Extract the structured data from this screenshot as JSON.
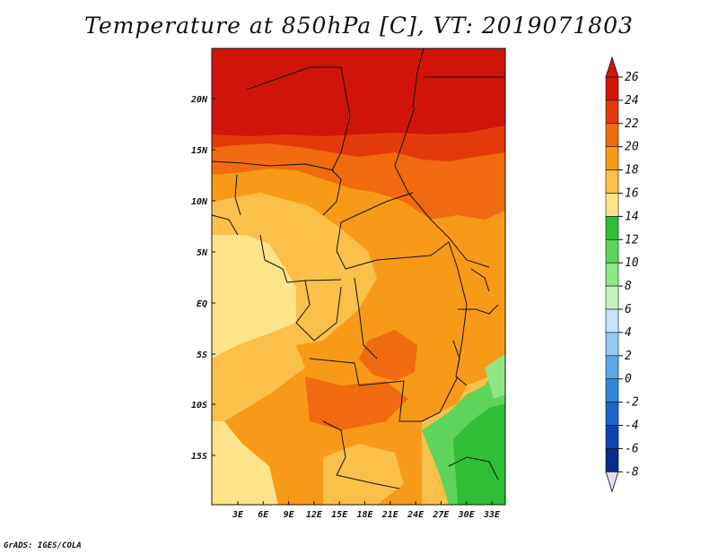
{
  "title": "Temperature at 850hPa [C], VT: 2019071803",
  "credit": "GrADS: IGES/COLA",
  "map": {
    "lat_labels": [
      "20N",
      "15N",
      "10N",
      "5N",
      "EQ",
      "5S",
      "10S",
      "15S"
    ],
    "lon_labels": [
      "3E",
      "6E",
      "9E",
      "12E",
      "15E",
      "18E",
      "21E",
      "24E",
      "27E",
      "30E",
      "33E"
    ]
  },
  "colorbar": {
    "labels": [
      "26",
      "24",
      "22",
      "20",
      "18",
      "16",
      "14",
      "12",
      "10",
      "8",
      "6",
      "4",
      "2",
      "0",
      "-2",
      "-4",
      "-6",
      "-8"
    ],
    "colors": [
      "#d2150a",
      "#e33a0c",
      "#f06a0f",
      "#f79a18",
      "#fac04a",
      "#fde489",
      "#2fbe35",
      "#5fd45a",
      "#8ee685",
      "#c6f2c0",
      "#c8e4fa",
      "#94c8f3",
      "#5ca6e8",
      "#3286de",
      "#1b65d0",
      "#0f44b3",
      "#082b8c",
      "#08186a"
    ],
    "under_color": "#e0e0f8",
    "over_color": "#d2150a"
  }
}
